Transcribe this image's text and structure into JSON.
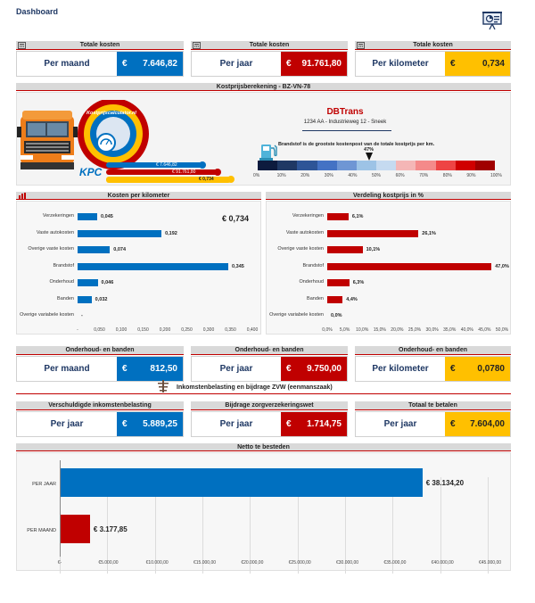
{
  "title": "Dashboard",
  "kpi_row1": [
    {
      "header": "Totale kosten",
      "label": "Per maand",
      "currency": "€",
      "value": "7.646,82",
      "color": "blue"
    },
    {
      "header": "Totale kosten",
      "label": "Per jaar",
      "currency": "€",
      "value": "91.761,80",
      "color": "red"
    },
    {
      "header": "Totale kosten",
      "label": "Per kilometer",
      "currency": "€",
      "value": "0,734",
      "color": "yellow"
    }
  ],
  "kostprijs": {
    "header": "Kostprijsberekening  -  BZ-VN-78",
    "company": "DBTrans",
    "address": "1234 AA - Industrieweg 12 - Sneek",
    "fuel_note": "Brandstof is de grootste kostenpost van de totale kostprijs per km.",
    "pointer_label": "47%",
    "pointer_value": 47,
    "scale_ticks": [
      "0%",
      "10%",
      "20%",
      "30%",
      "40%",
      "50%",
      "60%",
      "70%",
      "80%",
      "90%",
      "100%"
    ],
    "scale_colors": [
      "#0d1b3e",
      "#1f3864",
      "#2e5597",
      "#4472c4",
      "#6f96d4",
      "#9dc3e6",
      "#c5daf0",
      "#f4b6b6",
      "#f48a8a",
      "#ee4444",
      "#d00000",
      "#a00000"
    ],
    "logo_text": "Kostprijscalculator.nl",
    "logo_abbr": "KPC",
    "logo_val_maand": "€ 7.646,82",
    "logo_val_jaar": "€ 91.761,80",
    "logo_val_km": "€ 0,734"
  },
  "kosten_per_km": {
    "header": "Kosten per kilometer",
    "total": "€ 0,734",
    "chart_data": {
      "type": "bar",
      "orientation": "horizontal",
      "categories": [
        "Verzekeringen",
        "Vaste autokosten",
        "Overige vaste kosten",
        "Brandstof",
        "Onderhoud",
        "Banden",
        "Overige variabele kosten"
      ],
      "values": [
        0.045,
        0.192,
        0.074,
        0.345,
        0.046,
        0.032,
        0
      ],
      "labels": [
        "0,045",
        "0,192",
        "0,074",
        "0,345",
        "0,046",
        "0,032",
        "-"
      ],
      "xlim": [
        0,
        0.4
      ],
      "xticks": [
        "-",
        "0,050",
        "0,100",
        "0,150",
        "0,200",
        "0,250",
        "0,300",
        "0,350",
        "0,400"
      ],
      "color": "#0070c0"
    }
  },
  "verdeling": {
    "header": "Verdeling kostprijs in %",
    "chart_data": {
      "type": "bar",
      "orientation": "horizontal",
      "categories": [
        "Verzekeringen",
        "Vaste autokosten",
        "Overige vaste kosten",
        "Brandstof",
        "Onderhoud",
        "Banden",
        "Overige variabele kosten"
      ],
      "values": [
        6.1,
        26.1,
        10.1,
        47.0,
        6.3,
        4.4,
        0.0
      ],
      "labels": [
        "6,1%",
        "26,1%",
        "10,1%",
        "47,0%",
        "6,3%",
        "4,4%",
        "0,0%"
      ],
      "xlim": [
        0,
        50
      ],
      "xticks": [
        "0,0%",
        "5,0%",
        "10,0%",
        "15,0%",
        "20,0%",
        "25,0%",
        "30,0%",
        "35,0%",
        "40,0%",
        "45,0%",
        "50,0%"
      ],
      "color": "#c00000"
    }
  },
  "kpi_row2": [
    {
      "header": "Onderhoud- en banden",
      "label": "Per maand",
      "currency": "€",
      "value": "812,50",
      "color": "blue"
    },
    {
      "header": "Onderhoud- en banden",
      "label": "Per jaar",
      "currency": "€",
      "value": "9.750,00",
      "color": "red"
    },
    {
      "header": "Onderhoud- en banden",
      "label": "Per kilometer",
      "currency": "€",
      "value": "0,0780",
      "color": "yellow"
    }
  ],
  "inkomsten_header": "Inkomstenbelasting en bijdrage ZVW (eenmanszaak)",
  "kpi_row3": [
    {
      "header": "Verschuldigde inkomstenbelasting",
      "label": "Per jaar",
      "currency": "€",
      "value": "5.889,25",
      "color": "blue"
    },
    {
      "header": "Bijdrage zorgverzekeringswet",
      "label": "Per jaar",
      "currency": "€",
      "value": "1.714,75",
      "color": "red"
    },
    {
      "header": "Totaal te betalen",
      "label": "Per jaar",
      "currency": "€",
      "value": "7.604,00",
      "color": "yellow"
    }
  ],
  "netto": {
    "header": "Netto te besteden",
    "chart_data": {
      "type": "bar",
      "orientation": "horizontal",
      "categories": [
        "PER JAAR",
        "PER MAAND"
      ],
      "values": [
        38134.2,
        3177.85
      ],
      "labels": [
        "€ 38.134,20",
        "€ 3.177,85"
      ],
      "colors": [
        "#0070c0",
        "#c00000"
      ],
      "xlim": [
        0,
        45000
      ],
      "xticks": [
        "€-",
        "€5.000,00",
        "€10.000,00",
        "€15.000,00",
        "€20.000,00",
        "€25.000,00",
        "€30.000,00",
        "€35.000,00",
        "€40.000,00",
        "€45.000,00"
      ]
    }
  }
}
